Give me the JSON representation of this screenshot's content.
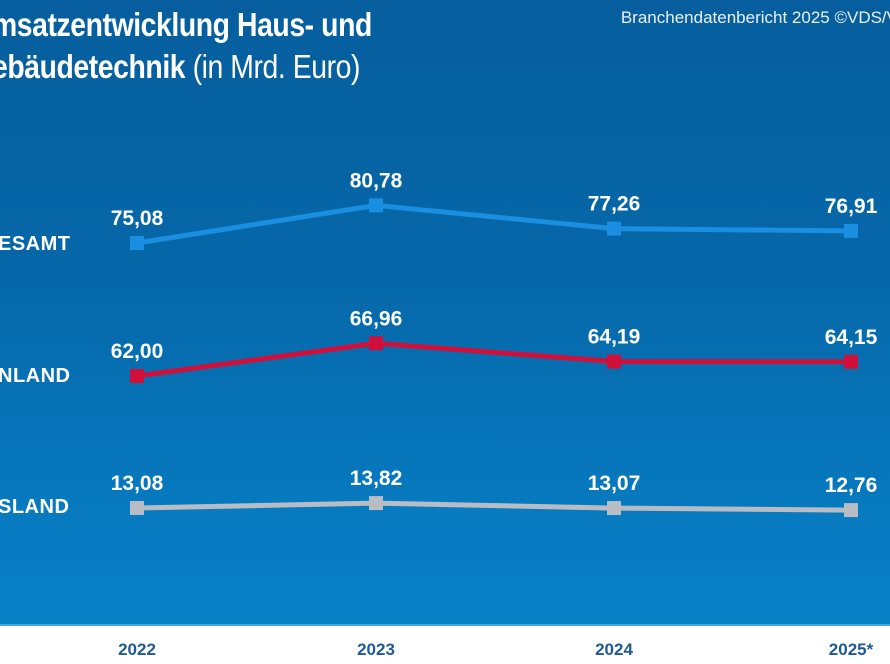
{
  "header": {
    "title_line1": "msatzentwicklung Haus- und",
    "title_line2_bold": "ebäudetechnik",
    "title_line2_light": " (in Mrd. Euro)",
    "source": "Branchendatenbericht 2025 ©VDS/V"
  },
  "chart_data": {
    "type": "line",
    "title": "Umsatzentwicklung Haus- und Gebäudetechnik (in Mrd. Euro)",
    "xlabel": "",
    "ylabel": "Mrd. Euro",
    "categories": [
      "2022",
      "2023",
      "2024",
      "2025*"
    ],
    "grid": false,
    "legend": "left labels",
    "series": [
      {
        "name": "ESAMT",
        "color": "#1a8ee0",
        "values": [
          75.08,
          80.78,
          77.26,
          76.91
        ],
        "labels": [
          "75,08",
          "80,78",
          "77,26",
          "76,91"
        ]
      },
      {
        "name": "NLAND",
        "color": "#d0103a",
        "values": [
          62.0,
          66.96,
          64.19,
          64.15
        ],
        "labels": [
          "62,00",
          "66,96",
          "64,19",
          "64,15"
        ]
      },
      {
        "name": "SLAND",
        "color": "#b8bcc4",
        "values": [
          13.08,
          13.82,
          13.07,
          12.76
        ],
        "labels": [
          "13,08",
          "13,82",
          "13,07",
          "12,76"
        ]
      }
    ]
  }
}
